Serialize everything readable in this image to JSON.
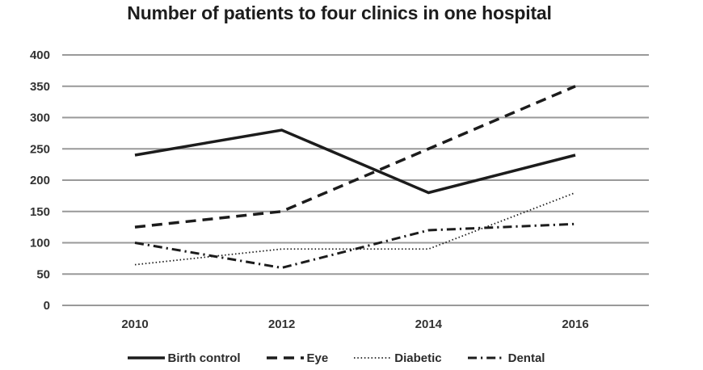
{
  "chart_data": {
    "type": "line",
    "title": "Number of patients to four clinics in one hospital",
    "categories": [
      "2010",
      "2012",
      "2014",
      "2016"
    ],
    "series": [
      {
        "name": "Birth control",
        "style": "solid",
        "values": [
          240,
          280,
          180,
          240
        ]
      },
      {
        "name": "Eye",
        "style": "dashed",
        "values": [
          125,
          150,
          250,
          350
        ]
      },
      {
        "name": "Diabetic",
        "style": "dotted",
        "values": [
          65,
          90,
          90,
          180
        ]
      },
      {
        "name": "Dental",
        "style": "dashdot",
        "values": [
          100,
          60,
          120,
          130
        ]
      }
    ],
    "xlabel": "",
    "ylabel": "",
    "ylim": [
      0,
      400
    ],
    "yticks": [
      0,
      50,
      100,
      150,
      200,
      250,
      300,
      350,
      400
    ],
    "grid": true,
    "legend_position": "bottom",
    "colors": {
      "line": "#1c1c1c",
      "grid": "#999999",
      "text": "#333333",
      "background": "#ffffff"
    }
  }
}
